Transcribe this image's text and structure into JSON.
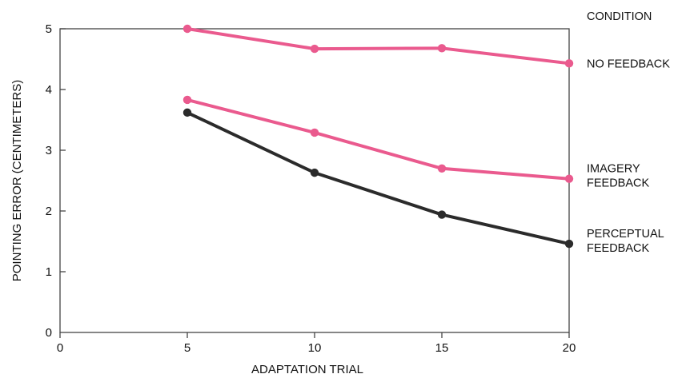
{
  "chart_data": {
    "type": "line",
    "title": "",
    "xlabel": "ADAPTATION TRIAL",
    "ylabel": "POINTING ERROR (CENTIMETERS)",
    "xlim": [
      0,
      20
    ],
    "ylim": [
      0,
      5
    ],
    "xticks": [
      "0",
      "5",
      "10",
      "15",
      "20"
    ],
    "yticks": [
      "0",
      "1",
      "2",
      "3",
      "4",
      "5"
    ],
    "grid": false,
    "legend_title": "CONDITION",
    "legend_placement": "right, labels at line ends",
    "x": [
      5,
      10,
      15,
      20
    ],
    "series": [
      {
        "name": "NO FEEDBACK",
        "label_lines": [
          "NO FEEDBACK"
        ],
        "color": "#ea5a8e",
        "values": [
          5.0,
          4.67,
          4.68,
          4.43
        ]
      },
      {
        "name": "IMAGERY FEEDBACK",
        "label_lines": [
          "IMAGERY",
          "FEEDBACK"
        ],
        "color": "#ea5a8e",
        "values": [
          3.83,
          3.29,
          2.7,
          2.53
        ]
      },
      {
        "name": "PERCEPTUAL FEEDBACK",
        "label_lines": [
          "PERCEPTUAL",
          "FEEDBACK"
        ],
        "color": "#2b2b2b",
        "values": [
          3.62,
          2.63,
          1.94,
          1.46
        ]
      }
    ]
  }
}
